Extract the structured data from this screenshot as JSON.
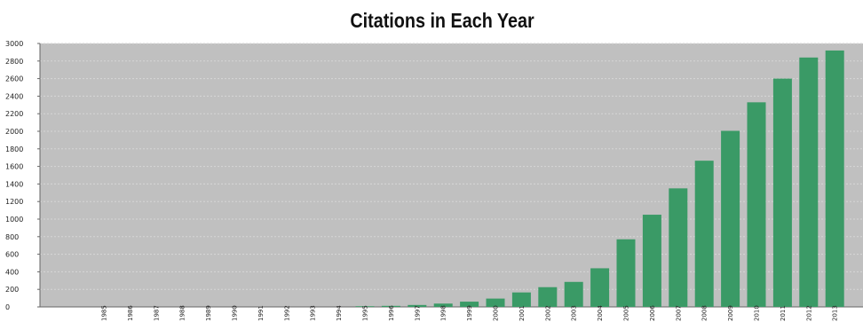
{
  "chart_data": {
    "type": "bar",
    "title": "Citations in Each Year",
    "xlabel": "",
    "ylabel": "",
    "ylim": [
      0,
      3000
    ],
    "ytick_step": 200,
    "grid": true,
    "legend": "none",
    "categories": [
      "1985",
      "1986",
      "1987",
      "1988",
      "1989",
      "1990",
      "1991",
      "1992",
      "1993",
      "1994",
      "1995",
      "1996",
      "1997",
      "1998",
      "1999",
      "2000",
      "2001",
      "2002",
      "2003",
      "2004",
      "2005",
      "2006",
      "2007",
      "2008",
      "2009",
      "2010",
      "2011",
      "2012",
      "2013"
    ],
    "values": [
      0,
      0,
      0,
      0,
      0,
      0,
      0,
      0,
      0,
      0,
      8,
      12,
      22,
      38,
      60,
      95,
      165,
      225,
      285,
      440,
      770,
      1050,
      1350,
      1665,
      2005,
      2330,
      2600,
      2840,
      2920
    ],
    "colors": {
      "plot_background": "#c0c0c0",
      "bar": "#3a9a66",
      "grid": "#d6d6d6"
    }
  }
}
